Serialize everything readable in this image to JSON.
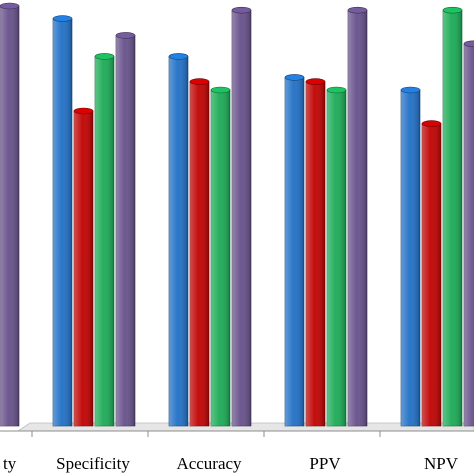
{
  "chart_data": {
    "type": "bar",
    "title": "",
    "xlabel": "",
    "ylabel": "",
    "categories": [
      "ty",
      "Specificity",
      "Accuracy",
      "PPV",
      "NPV"
    ],
    "series": [
      {
        "color": "#1f6fc5",
        "values": [
          null,
          97,
          88,
          83,
          80
        ]
      },
      {
        "color": "#c00000",
        "values": [
          null,
          75,
          82,
          82,
          72
        ]
      },
      {
        "color": "#1aaa55",
        "values": [
          null,
          88,
          80,
          80,
          99
        ]
      },
      {
        "color": "#66508a",
        "values": [
          100,
          93,
          99,
          99,
          91
        ]
      }
    ],
    "ylim": [
      0,
      100
    ],
    "grid": false,
    "legend": "none"
  }
}
